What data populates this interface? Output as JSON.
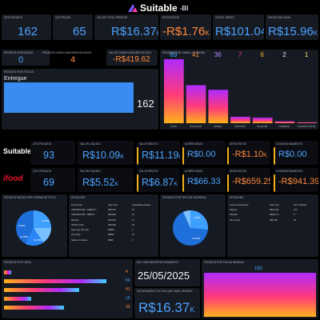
{
  "brand": {
    "name": "Suitable",
    "tag": "-BI"
  },
  "kpis": [
    {
      "label": "QTD PEDIDOS",
      "value": "162"
    },
    {
      "label": "QTD PEÇAS",
      "value": "65"
    },
    {
      "label": "VALOR TOTAL PEDIDOS",
      "value": "R$16.37",
      "suffix": "K"
    },
    {
      "label": "DESCONTOS",
      "value": "-R$1.76",
      "suffix": "K"
    },
    {
      "label": "TICKET MÉDIO",
      "value": "R$101.04"
    },
    {
      "label": "SALDO EM CAIXA",
      "value": "R$15.96",
      "suffix": "K"
    }
  ],
  "row2": [
    {
      "label": "Pedidos Atrasados",
      "value": "0"
    },
    {
      "label": "Pedidos Cancelados/devolvidos",
      "value": "4"
    },
    {
      "label": "Valor cancelado/devolvido",
      "value": "-R$419.62"
    }
  ],
  "status_card": {
    "label": "Pedidos por status",
    "bar_label": "Entregue",
    "value": "162",
    "fraction": 1.0
  },
  "channel_chart": {
    "label": "Pedidos por canal de venda",
    "values": [
      69,
      41,
      36,
      7,
      6,
      2,
      1
    ],
    "categories": [
      "IFOOD",
      "INSTAGRAM",
      "MOBILE",
      "WHATSAPP",
      "TELEFONE",
      "FACEBOOK",
      "CARDÁPIO DIGITAL"
    ]
  },
  "channels": [
    {
      "logo": "Suitable",
      "kpis": [
        {
          "label": "QTD PEDIDOS",
          "value": "93"
        },
        {
          "label": "VALOR LÍQUIDO",
          "value": "R$10.09",
          "suffix": "K"
        },
        {
          "label": "VALOR BRUTO",
          "value": "R$11.19",
          "suffix": "K"
        },
        {
          "label": "ACRÉSCIMOS",
          "value": "R$0.00"
        },
        {
          "label": "DESCONTOS",
          "value": "-R$1.10",
          "suffix": "K"
        },
        {
          "label": "COMISSIONAMENTO",
          "value": "R$0.00"
        }
      ]
    },
    {
      "logo": "ifood",
      "kpis": [
        {
          "label": "QTD PEDIDOS",
          "value": "69"
        },
        {
          "label": "VALOR LÍQUIDO",
          "value": "R$5.52",
          "suffix": "K"
        },
        {
          "label": "VALOR BRUTO",
          "value": "R$6.87",
          "suffix": "K"
        },
        {
          "label": "ACRÉSCIMOS",
          "value": "R$66.33"
        },
        {
          "label": "DESCONTOS",
          "value": "-R$659.25"
        },
        {
          "label": "COMISSIONAMENTO",
          "value": "-R$941.39"
        }
      ]
    }
  ],
  "pay_card": {
    "label": "Pedidos pagos por forma de pgto",
    "pie_labels": [
      "27.89%",
      "9.64%",
      "22.38%",
      "37.04%"
    ]
  },
  "details_card": {
    "label": "Detalhes",
    "headers": [
      "Forma Pgto",
      "Valor total",
      "Quantidade pedidos"
    ],
    "rows": [
      [
        "VISA/MASTER - CRÉDITO",
        "R$5,976",
        "61"
      ],
      [
        "VISA/MASTER - DÉBITO",
        "R$1,688",
        "13"
      ],
      [
        "Dinheiro",
        "R$1,063",
        "11"
      ],
      [
        "IFOOD online",
        "R$4,586",
        "43"
      ],
      [
        "Apple pay (IF) dine",
        "R$800",
        "6"
      ],
      [
        "PIX (Loja)",
        "R$862",
        "15"
      ],
      [
        "Saldo em carteira",
        "R$48",
        "2"
      ]
    ]
  },
  "delivery_card": {
    "label": "Pedidos por tipo de entrega",
    "pie_labels": [
      "6.36%",
      "43.58%"
    ]
  },
  "details2_card": {
    "label": "Detalhes",
    "headers": [
      "Tipo de Atendimento",
      "Valor total",
      "Num. Pedidos"
    ],
    "rows": [
      [
        "Delivery",
        "R$10,216",
        "103"
      ],
      [
        "Retirada",
        "R$422.17",
        "6"
      ],
      [
        "Sem cortar",
        "R$5,730",
        "53"
      ]
    ]
  },
  "hour_card": {
    "label": "Pedidos por hora",
    "values": [
      4,
      56,
      41,
      15,
      33
    ]
  },
  "top_day": {
    "label": "DIA COM MAIOR FATURAMENTO",
    "value": "25/05/2025"
  },
  "top_day_rev": {
    "label": "FATURAMENTO NO DIA QUE MAIS VENDEU",
    "value": "R$16.37",
    "suffix": "K"
  },
  "weekday_card": {
    "label": "Pedidos por dia da semana",
    "value": "162"
  },
  "colors": {
    "blue": "#4da3ff",
    "orange": "#ff8a3c",
    "card": "#161a22",
    "yellow": "#f2b21b"
  }
}
